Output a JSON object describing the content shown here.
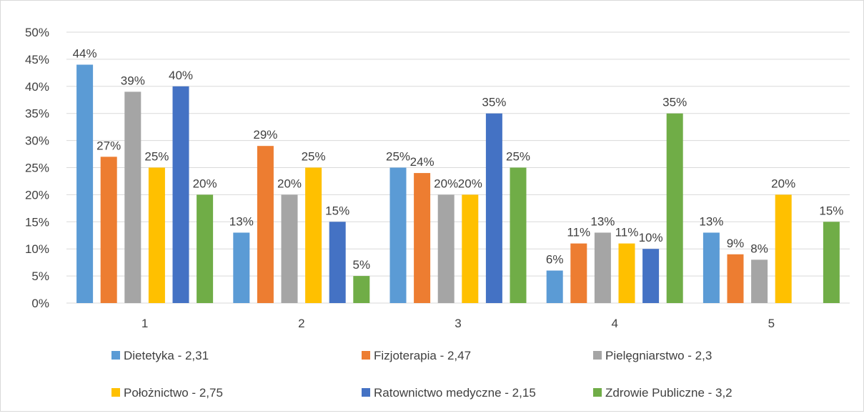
{
  "chart_data": {
    "type": "bar",
    "title": "",
    "xlabel": "",
    "ylabel": "",
    "categories": [
      "1",
      "2",
      "3",
      "4",
      "5"
    ],
    "ylim": [
      0,
      50
    ],
    "ytick_step": 5,
    "y_unit": "%",
    "grid": true,
    "legend_position": "bottom",
    "series": [
      {
        "name": "Dietetyka - 2,31",
        "color": "#5B9BD5",
        "values": [
          44,
          13,
          25,
          6,
          13
        ]
      },
      {
        "name": "Fizjoterapia - 2,47",
        "color": "#ED7D31",
        "values": [
          27,
          29,
          24,
          11,
          9
        ]
      },
      {
        "name": "Pielęgniarstwo - 2,3",
        "color": "#A5A5A5",
        "values": [
          39,
          20,
          20,
          13,
          8
        ]
      },
      {
        "name": "Położnictwo - 2,75",
        "color": "#FFC000",
        "values": [
          25,
          25,
          20,
          11,
          20
        ]
      },
      {
        "name": "Ratownictwo medyczne - 2,15",
        "color": "#4472C4",
        "values": [
          40,
          15,
          35,
          10,
          null
        ]
      },
      {
        "name": "Zdrowie Publiczne - 3,2",
        "color": "#70AD47",
        "values": [
          20,
          5,
          25,
          35,
          15
        ]
      }
    ]
  }
}
